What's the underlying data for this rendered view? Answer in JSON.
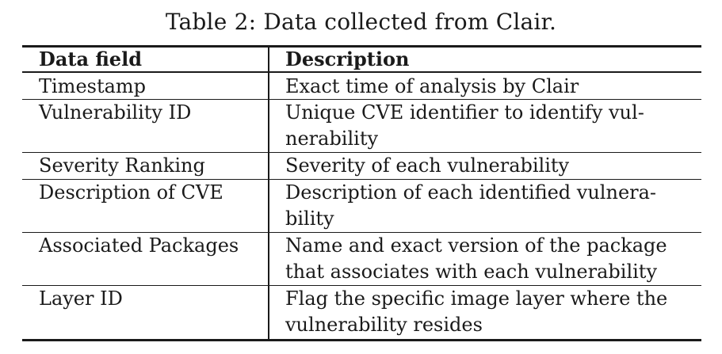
{
  "caption": "Table 2: Data collected from Clair.",
  "header": {
    "col1": "Data field",
    "col2": "Description"
  },
  "rows": [
    {
      "field": "Timestamp",
      "description_lines": [
        "Exact time of analysis by Clair"
      ]
    },
    {
      "field": "Vulnerability ID",
      "description_lines": [
        "Unique CVE identifier to identify vul-",
        "nerability"
      ]
    },
    {
      "field": "Severity Ranking",
      "description_lines": [
        "Severity of each vulnerability"
      ]
    },
    {
      "field": "Description of CVE",
      "description_lines": [
        "Description of each identified vulnera-",
        "bility"
      ]
    },
    {
      "field": "Associated Packages",
      "description_lines": [
        "Name and exact version of the package",
        "that associates with each vulnerability"
      ]
    },
    {
      "field": "Layer ID",
      "description_lines": [
        "Flag the specific image layer where the",
        "vulnerability resides"
      ]
    }
  ]
}
